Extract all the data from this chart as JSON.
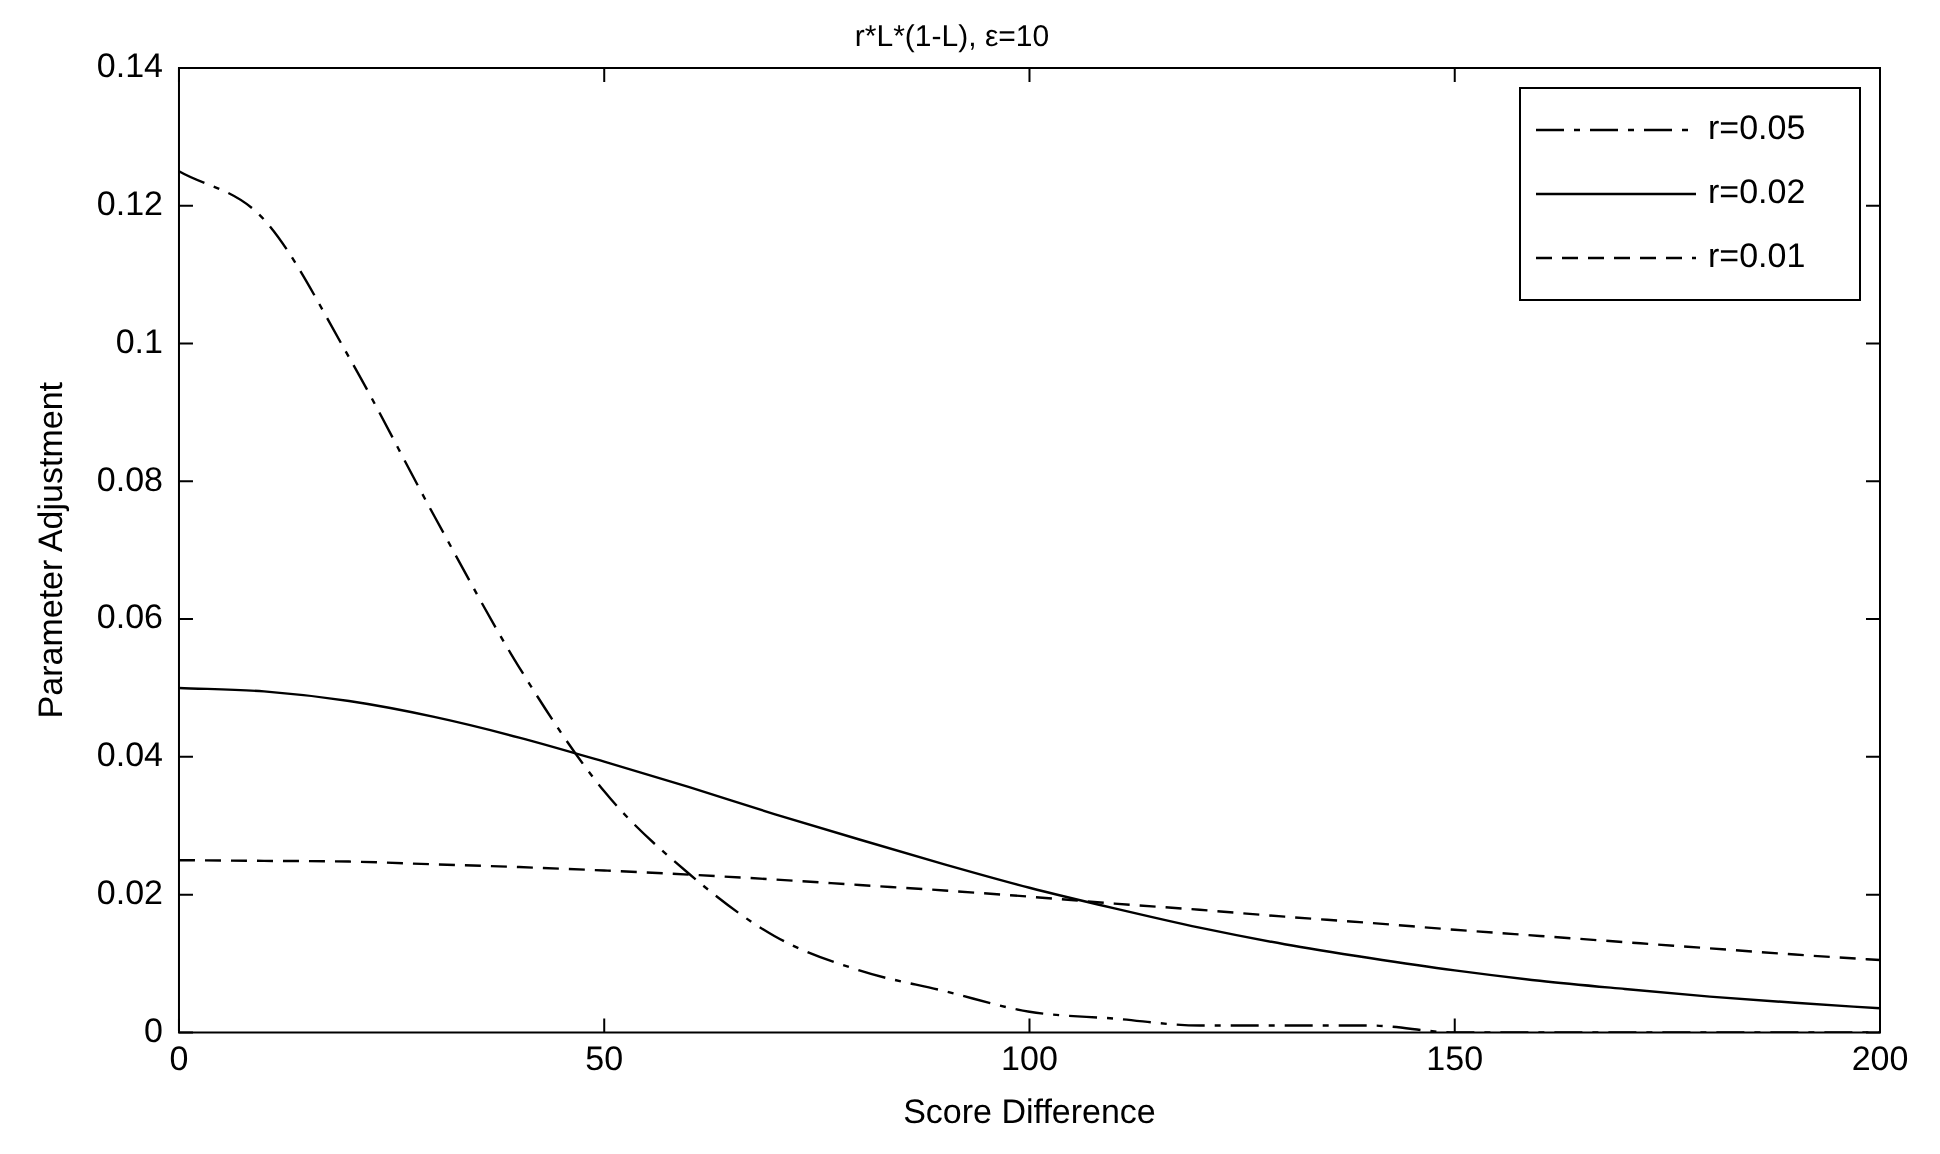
{
  "chart_data": {
    "type": "line",
    "title": "r*L*(1-L), ε=10",
    "xlabel": "Score Difference",
    "ylabel": "Parameter Adjustment",
    "x": [
      0,
      10,
      20,
      30,
      40,
      50,
      60,
      70,
      80,
      90,
      100,
      110,
      120,
      130,
      140,
      150,
      160,
      170,
      180,
      190,
      200
    ],
    "series": [
      {
        "name": "r=0.05",
        "color": "#000000",
        "line_style": "dashdot",
        "values": [
          0.125,
          0.118,
          0.098,
          0.075,
          0.053,
          0.035,
          0.023,
          0.014,
          0.009,
          0.006,
          0.003,
          0.002,
          0.001,
          0.001,
          0.001,
          0,
          0,
          0,
          0,
          0,
          0
        ]
      },
      {
        "name": "r=0.02",
        "color": "#000000",
        "line_style": "solid",
        "values": [
          0.05,
          0.0495,
          0.0481,
          0.0458,
          0.0428,
          0.0393,
          0.0356,
          0.0317,
          0.028,
          0.0244,
          0.021,
          0.018,
          0.0152,
          0.0128,
          0.0108,
          0.009,
          0.0075,
          0.0063,
          0.0052,
          0.0043,
          0.0035
        ]
      },
      {
        "name": "r=0.01",
        "color": "#000000",
        "line_style": "dashed",
        "values": [
          0.025,
          0.0249,
          0.0248,
          0.0244,
          0.024,
          0.0235,
          0.0229,
          0.0222,
          0.0214,
          0.0206,
          0.0197,
          0.0187,
          0.0178,
          0.0168,
          0.0159,
          0.0149,
          0.014,
          0.0131,
          0.0122,
          0.0113,
          0.0105
        ]
      }
    ],
    "xlim": [
      0,
      200
    ],
    "xticks": [
      0,
      50,
      100,
      150,
      200
    ],
    "ylim": [
      0,
      0.14
    ],
    "yticks": [
      0,
      0.02,
      0.04,
      0.06,
      0.08,
      0.1,
      0.12,
      0.14
    ],
    "grid": false,
    "legend": "top right",
    "marker": "none"
  }
}
